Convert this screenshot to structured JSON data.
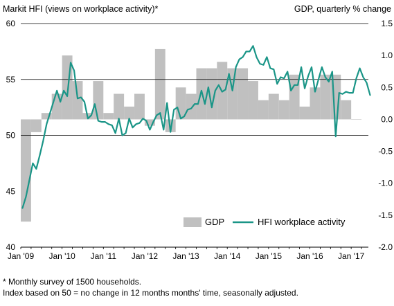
{
  "chart_data": {
    "type": "bar+line",
    "title_left": "Markit HFI (views on workplace activity)*",
    "title_right": "GDP, quarterly % change",
    "left_axis": {
      "ylim": [
        40,
        60
      ],
      "ticks": [
        40,
        45,
        50,
        55,
        60
      ],
      "tick_labels": [
        "40",
        "45",
        "50",
        "55",
        "60"
      ]
    },
    "right_axis": {
      "ylim": [
        -2.0,
        1.5
      ],
      "ticks": [
        -2.0,
        -1.5,
        -1.0,
        -0.5,
        0.0,
        0.5,
        1.0,
        1.5
      ],
      "tick_labels": [
        "-2.0",
        "-1.5",
        "-1.0",
        "-0.5",
        "0.0",
        "0.5",
        "1.0",
        "1.5"
      ]
    },
    "gridlines": [
      50,
      55,
      60
    ],
    "x_start": "2009-01",
    "x_end": "2017-05",
    "x_tick_labels": [
      "Jan '09",
      "Jan '10",
      "Jan '11",
      "Jan '12",
      "Jan '13",
      "Jan '14",
      "Jan '15",
      "Jan '16",
      "Jan '17"
    ],
    "legend": {
      "placement": "bottom-right",
      "entries": [
        "GDP",
        "HFI workplace activity"
      ]
    },
    "colors": {
      "gdp": "#c0c0c0",
      "hfi": "#1a9587",
      "grid": "#000000"
    },
    "series": [
      {
        "name": "GDP",
        "type": "bar",
        "axis": "right",
        "quarters": [
          "2009-Q1",
          "2009-Q2",
          "2009-Q3",
          "2009-Q4",
          "2010-Q1",
          "2010-Q2",
          "2010-Q3",
          "2010-Q4",
          "2011-Q1",
          "2011-Q2",
          "2011-Q3",
          "2011-Q4",
          "2012-Q1",
          "2012-Q2",
          "2012-Q3",
          "2012-Q4",
          "2013-Q1",
          "2013-Q2",
          "2013-Q3",
          "2013-Q4",
          "2014-Q1",
          "2014-Q2",
          "2014-Q3",
          "2014-Q4",
          "2015-Q1",
          "2015-Q2",
          "2015-Q3",
          "2015-Q4",
          "2016-Q1",
          "2016-Q2",
          "2016-Q3",
          "2016-Q4",
          "2017-Q1"
        ],
        "values": [
          -1.6,
          -0.2,
          0.1,
          0.4,
          1.0,
          0.6,
          0.1,
          0.6,
          0.1,
          0.4,
          0.2,
          0.4,
          -0.1,
          1.1,
          -0.2,
          0.5,
          0.4,
          0.8,
          0.8,
          0.9,
          0.8,
          0.8,
          0.6,
          0.3,
          0.4,
          0.3,
          0.7,
          0.2,
          0.5,
          0.7,
          0.7,
          0.3,
          0.0
        ]
      },
      {
        "name": "HFI workplace activity",
        "type": "line",
        "axis": "left",
        "monthly_from": "2009-01",
        "values": [
          43.5,
          44.5,
          46.0,
          47.5,
          47.0,
          48.2,
          49.5,
          51.0,
          52.0,
          53.0,
          54.0,
          53.0,
          54.0,
          53.5,
          56.5,
          55.8,
          53.3,
          53.4,
          53.0,
          51.5,
          51.8,
          52.8,
          51.3,
          51.2,
          51.2,
          51.0,
          50.9,
          50.2,
          51.5,
          50.0,
          50.2,
          51.5,
          50.7,
          51.0,
          51.1,
          51.5,
          51.3,
          50.5,
          51.2,
          51.8,
          52.0,
          50.5,
          52.9,
          50.3,
          52.3,
          52.5,
          51.5,
          51.7,
          52.3,
          52.4,
          52.8,
          52.8,
          54.0,
          52.8,
          54.3,
          52.5,
          54.0,
          54.5,
          53.9,
          54.1,
          55.5,
          54.0,
          56.1,
          56.8,
          57.0,
          57.5,
          57.5,
          58.0,
          57.0,
          56.4,
          56.3,
          57.0,
          56.0,
          55.9,
          54.6,
          55.2,
          55.1,
          55.7,
          54.0,
          54.5,
          54.5,
          56.1,
          54.2,
          55.3,
          56.1,
          53.9,
          55.0,
          56.1,
          55.2,
          54.8,
          55.7,
          49.9,
          53.8,
          53.7,
          53.9,
          53.8,
          53.8,
          55.1,
          56.0,
          55.2,
          54.7,
          53.6
        ]
      }
    ]
  },
  "footnote": {
    "line1": "* Monthly survey of 1500 households.",
    "line2": "Index based on 50 = no change in 12 months months' time, seasonally adjusted."
  }
}
